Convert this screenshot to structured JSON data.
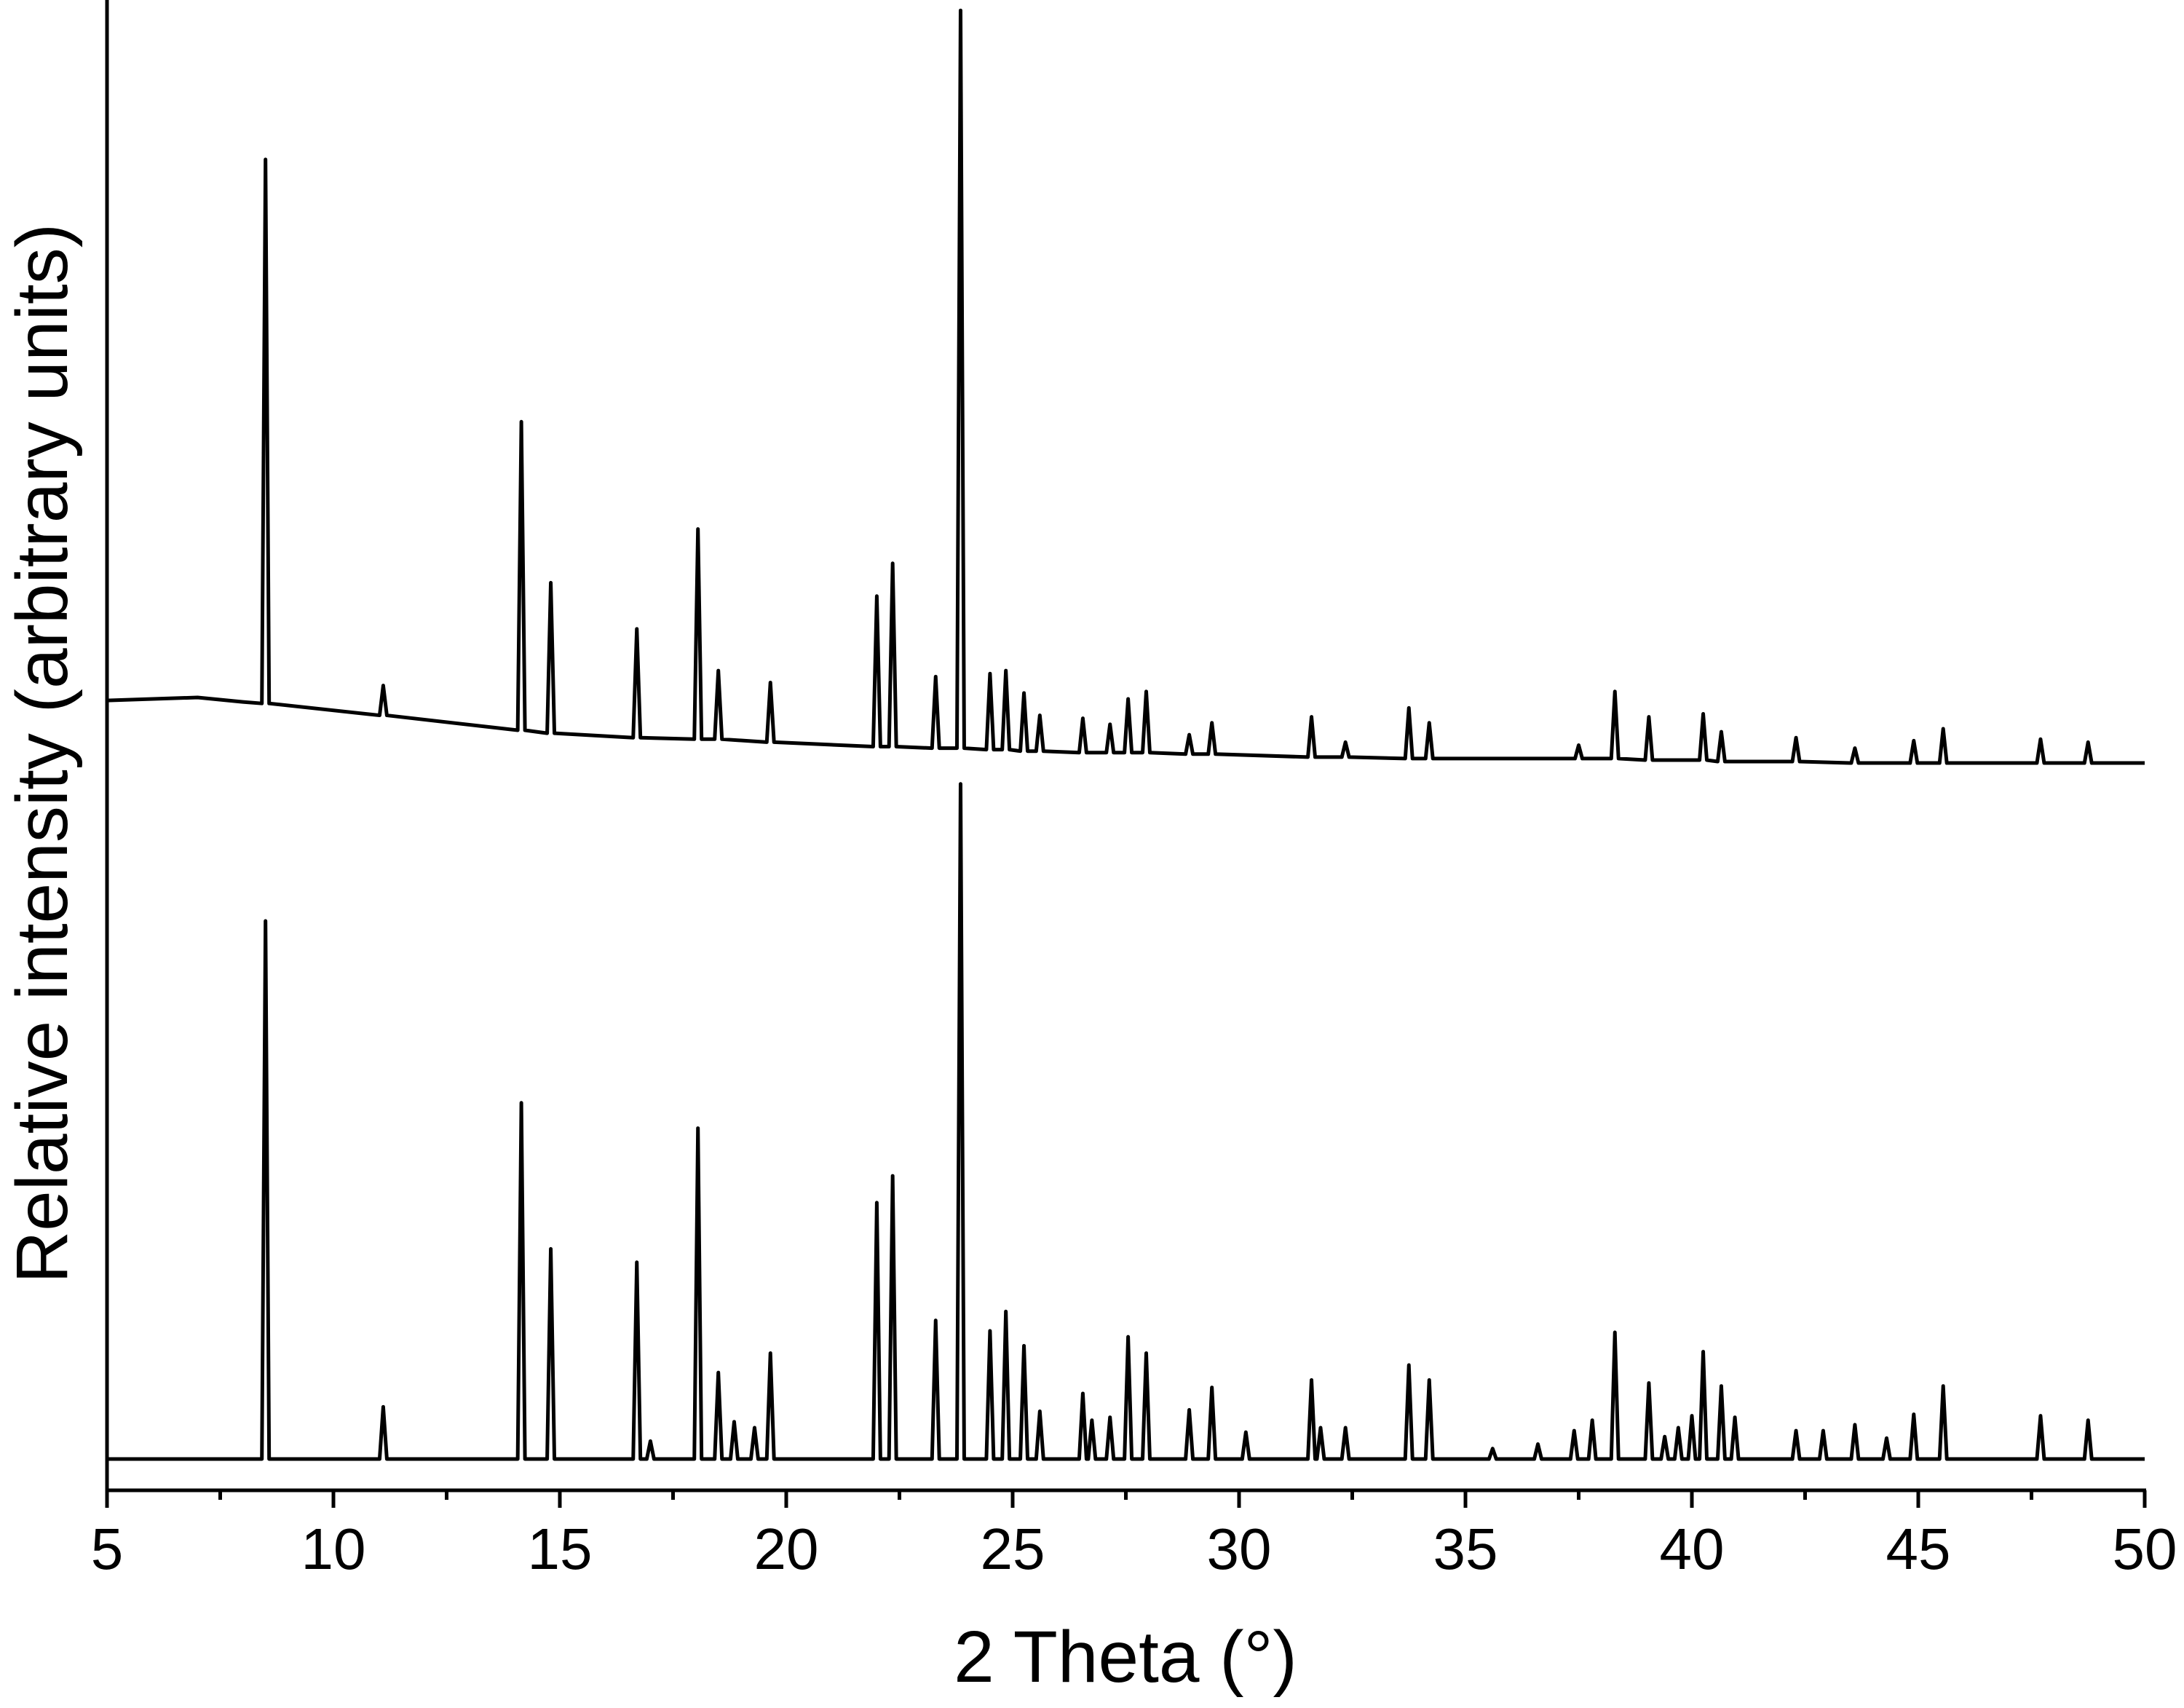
{
  "chart_data": {
    "type": "line",
    "x_label": "2 Theta (°)",
    "y_label": "Relative intensity (arbitrary units)",
    "xlim": [
      5,
      50
    ],
    "ylim": [
      0,
      100
    ],
    "xticks": [
      5,
      10,
      15,
      20,
      25,
      30,
      35,
      40,
      45,
      50
    ],
    "xminorticks": [
      7.5,
      12.5,
      17.5,
      22.5,
      27.5,
      32.5,
      37.5,
      42.5,
      47.5
    ],
    "series": [
      {
        "color": "#000000",
        "x": [
          5,
          7,
          8,
          8.42,
          8.5,
          8.58,
          11.02,
          11.1,
          11.18,
          14.07,
          14.15,
          14.23,
          14.72,
          14.8,
          14.88,
          16.62,
          16.7,
          16.78,
          17.97,
          18.05,
          18.13,
          18.42,
          18.5,
          18.58,
          19.57,
          19.65,
          19.73,
          21.92,
          22.0,
          22.08,
          22.27,
          22.35,
          22.43,
          23.22,
          23.3,
          23.38,
          23.77,
          23.85,
          23.93,
          24.42,
          24.5,
          24.58,
          24.77,
          24.85,
          24.93,
          25.17,
          25.25,
          25.33,
          25.52,
          25.6,
          25.68,
          26.47,
          26.55,
          26.63,
          27.07,
          27.15,
          27.23,
          27.47,
          27.55,
          27.63,
          27.87,
          27.95,
          28.03,
          28.82,
          28.9,
          28.98,
          29.32,
          29.4,
          29.48,
          31.52,
          31.6,
          31.68,
          32.27,
          32.35,
          32.43,
          33.67,
          33.75,
          33.83,
          34.12,
          34.2,
          34.28,
          37.42,
          37.5,
          37.58,
          38.22,
          38.3,
          38.38,
          38.97,
          39.05,
          39.13,
          40.17,
          40.25,
          40.33,
          40.57,
          40.65,
          40.73,
          42.22,
          42.3,
          42.38,
          43.52,
          43.6,
          43.68,
          44.82,
          44.9,
          44.98,
          45.47,
          45.55,
          45.63,
          47.62,
          47.7,
          47.78,
          48.67,
          48.75,
          48.83,
          50
        ],
        "values": [
          53.0,
          53.2,
          52.9,
          52.8,
          89.3,
          52.8,
          52.0,
          54.0,
          52.0,
          51.0,
          71.7,
          51.0,
          50.8,
          60.9,
          50.8,
          50.5,
          57.8,
          50.5,
          50.4,
          64.5,
          50.4,
          50.4,
          55.0,
          50.4,
          50.2,
          54.2,
          50.2,
          49.9,
          60.0,
          49.9,
          49.9,
          62.2,
          49.9,
          49.8,
          54.6,
          49.8,
          49.8,
          99.3,
          49.8,
          49.7,
          54.8,
          49.7,
          49.7,
          55.0,
          49.7,
          49.6,
          53.5,
          49.6,
          49.6,
          52.0,
          49.6,
          49.5,
          51.8,
          49.5,
          49.5,
          51.4,
          49.5,
          49.5,
          53.1,
          49.5,
          49.5,
          53.6,
          49.5,
          49.4,
          50.7,
          49.4,
          49.4,
          51.5,
          49.4,
          49.2,
          51.9,
          49.2,
          49.2,
          50.2,
          49.2,
          49.1,
          52.5,
          49.1,
          49.1,
          51.5,
          49.1,
          49.1,
          50.0,
          49.1,
          49.1,
          53.6,
          49.1,
          49.0,
          51.9,
          49.0,
          49.0,
          52.1,
          49.0,
          48.9,
          50.9,
          48.9,
          48.9,
          50.5,
          48.9,
          48.8,
          49.8,
          48.8,
          48.8,
          50.3,
          48.8,
          48.8,
          51.1,
          48.8,
          48.8,
          50.4,
          48.8,
          48.8,
          50.2,
          48.8,
          48.8
        ]
      },
      {
        "color": "#000000",
        "x": [
          5,
          8.42,
          8.5,
          8.58,
          11.02,
          11.1,
          11.18,
          14.07,
          14.15,
          14.23,
          14.72,
          14.8,
          14.88,
          16.62,
          16.7,
          16.78,
          16.92,
          17.0,
          17.08,
          17.97,
          18.05,
          18.13,
          18.42,
          18.5,
          18.58,
          18.77,
          18.85,
          18.93,
          19.22,
          19.3,
          19.38,
          19.57,
          19.65,
          19.73,
          21.92,
          22.0,
          22.08,
          22.27,
          22.35,
          22.43,
          23.22,
          23.3,
          23.38,
          23.77,
          23.85,
          23.93,
          24.42,
          24.5,
          24.58,
          24.77,
          24.85,
          24.93,
          25.17,
          25.25,
          25.33,
          25.52,
          25.6,
          25.68,
          26.47,
          26.55,
          26.63,
          26.67,
          26.75,
          26.83,
          27.07,
          27.15,
          27.23,
          27.47,
          27.55,
          27.63,
          27.87,
          27.95,
          28.03,
          28.82,
          28.9,
          28.98,
          29.32,
          29.4,
          29.48,
          30.07,
          30.15,
          30.23,
          31.52,
          31.6,
          31.68,
          31.72,
          31.8,
          31.88,
          32.27,
          32.35,
          32.43,
          33.67,
          33.75,
          33.83,
          34.12,
          34.2,
          34.28,
          35.52,
          35.6,
          35.68,
          36.52,
          36.6,
          36.68,
          37.32,
          37.4,
          37.48,
          37.72,
          37.8,
          37.88,
          38.22,
          38.3,
          38.38,
          38.97,
          39.05,
          39.13,
          39.32,
          39.4,
          39.48,
          39.62,
          39.7,
          39.78,
          39.92,
          40.0,
          40.08,
          40.17,
          40.25,
          40.33,
          40.57,
          40.65,
          40.73,
          40.87,
          40.95,
          41.03,
          42.22,
          42.3,
          42.38,
          42.82,
          42.9,
          42.98,
          43.52,
          43.6,
          43.68,
          44.22,
          44.3,
          44.38,
          44.82,
          44.9,
          44.98,
          45.47,
          45.55,
          45.63,
          47.62,
          47.7,
          47.78,
          48.67,
          48.75,
          48.83,
          50
        ],
        "values": [
          2.1,
          2.1,
          38.2,
          2.1,
          2.1,
          5.6,
          2.1,
          2.1,
          26.0,
          2.1,
          2.1,
          16.2,
          2.1,
          2.1,
          15.3,
          2.1,
          2.1,
          3.3,
          2.1,
          2.1,
          24.3,
          2.1,
          2.1,
          7.9,
          2.1,
          2.1,
          4.6,
          2.1,
          2.1,
          4.2,
          2.1,
          2.1,
          9.2,
          2.1,
          2.1,
          19.3,
          2.1,
          2.1,
          21.1,
          2.1,
          2.1,
          11.4,
          2.1,
          2.1,
          47.4,
          2.1,
          2.1,
          10.7,
          2.1,
          2.1,
          12.0,
          2.1,
          2.1,
          9.7,
          2.1,
          2.1,
          5.3,
          2.1,
          2.1,
          6.5,
          2.1,
          2.1,
          4.7,
          2.1,
          2.1,
          4.9,
          2.1,
          2.1,
          10.3,
          2.1,
          2.1,
          9.2,
          2.1,
          2.1,
          5.4,
          2.1,
          2.1,
          6.9,
          2.1,
          2.1,
          3.9,
          2.1,
          2.1,
          7.4,
          2.1,
          2.1,
          4.2,
          2.1,
          2.1,
          4.2,
          2.1,
          2.1,
          8.4,
          2.1,
          2.1,
          7.4,
          2.1,
          2.1,
          2.8,
          2.1,
          2.1,
          3.1,
          2.1,
          2.1,
          4.0,
          2.1,
          2.1,
          4.7,
          2.1,
          2.1,
          10.6,
          2.1,
          2.1,
          7.2,
          2.1,
          2.1,
          3.6,
          2.1,
          2.1,
          4.2,
          2.1,
          2.1,
          5.0,
          2.1,
          2.1,
          9.3,
          2.1,
          2.1,
          7.0,
          2.1,
          2.1,
          4.9,
          2.1,
          2.1,
          4.0,
          2.1,
          2.1,
          4.0,
          2.1,
          2.1,
          4.4,
          2.1,
          2.1,
          3.5,
          2.1,
          2.1,
          5.1,
          2.1,
          2.1,
          7.0,
          2.1,
          2.1,
          5.0,
          2.1,
          2.1,
          4.7,
          2.1,
          2.1
        ]
      }
    ]
  }
}
